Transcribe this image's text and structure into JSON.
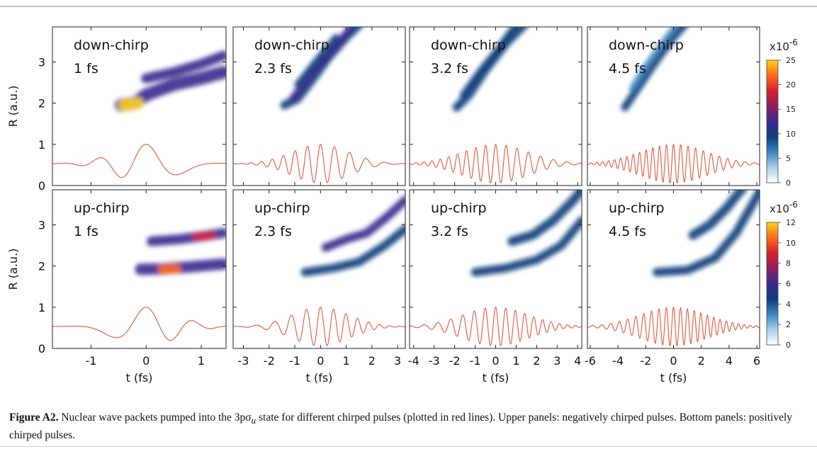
{
  "caption": {
    "label": "Figure A2.",
    "text": "Nuclear wave packets pumped into the 3pσ",
    "subscript": "u",
    "text_after": "state for different chirped pulses (plotted in red lines). Upper panels: negatively chirped pulses. Bottom panels: positively chirped pulses."
  },
  "colors": {
    "pulse": "#e8553a",
    "colormap": [
      "#ffffff",
      "#a9cfe6",
      "#3d86c0",
      "#0d3e7a",
      "#3a2a8f",
      "#8b1f5e",
      "#d91f2b",
      "#ff6a1a",
      "#ffd31a"
    ]
  },
  "chart_data": [
    {
      "type": "heatmap",
      "row": "top",
      "columns": 4,
      "chirp_label": "down-chirp",
      "durations": [
        "1 fs",
        "2.3 fs",
        "3.2 fs",
        "4.5 fs"
      ],
      "panels": [
        {
          "duration": "1 fs",
          "xlim": [
            -1.7,
            1.45
          ],
          "xticks": [
            -1,
            0,
            1
          ]
        },
        {
          "duration": "2.3 fs",
          "xlim": [
            -3.4,
            3.3
          ],
          "xticks": [
            -3,
            -2,
            -1,
            0,
            1,
            2,
            3
          ]
        },
        {
          "duration": "3.2 fs",
          "xlim": [
            -4.2,
            4.2
          ],
          "xticks": [
            -4,
            -3,
            -2,
            -1,
            0,
            1,
            2,
            3,
            4
          ]
        },
        {
          "duration": "4.5 fs",
          "xlim": [
            -6.2,
            6.2
          ],
          "xticks": [
            -6,
            -4,
            -2,
            0,
            2,
            4,
            6
          ]
        }
      ],
      "ylabel": "R (a.u.)",
      "ylim": [
        0,
        3.85
      ],
      "yticks": [
        0,
        1,
        2,
        3
      ],
      "colorbar": {
        "multiplier": "x10",
        "exponent": "-6",
        "range": [
          0,
          25
        ],
        "ticks": [
          0,
          5,
          10,
          15,
          20,
          25
        ]
      }
    },
    {
      "type": "heatmap",
      "row": "bottom",
      "columns": 4,
      "chirp_label": "up-chirp",
      "durations": [
        "1 fs",
        "2.3 fs",
        "3.2 fs",
        "4.5 fs"
      ],
      "panels": [
        {
          "duration": "1 fs",
          "xlim": [
            -1.7,
            1.45
          ],
          "xticks": [
            -1,
            0,
            1
          ]
        },
        {
          "duration": "2.3 fs",
          "xlim": [
            -3.4,
            3.3
          ],
          "xticks": [
            -3,
            -2,
            -1,
            0,
            1,
            2,
            3
          ]
        },
        {
          "duration": "3.2 fs",
          "xlim": [
            -4.2,
            4.2
          ],
          "xticks": [
            -4,
            -3,
            -2,
            -1,
            0,
            1,
            2,
            3,
            4
          ]
        },
        {
          "duration": "4.5 fs",
          "xlim": [
            -6.2,
            6.2
          ],
          "xticks": [
            -6,
            -4,
            -2,
            0,
            2,
            4,
            6
          ]
        }
      ],
      "xlabel": "t (fs)",
      "ylabel": "R (a.u.)",
      "ylim": [
        0,
        3.85
      ],
      "yticks": [
        0,
        1,
        2,
        3
      ],
      "colorbar": {
        "multiplier": "x10",
        "exponent": "-6",
        "range": [
          0,
          12
        ],
        "ticks": [
          0,
          2,
          4,
          6,
          8,
          10,
          12
        ]
      }
    }
  ]
}
